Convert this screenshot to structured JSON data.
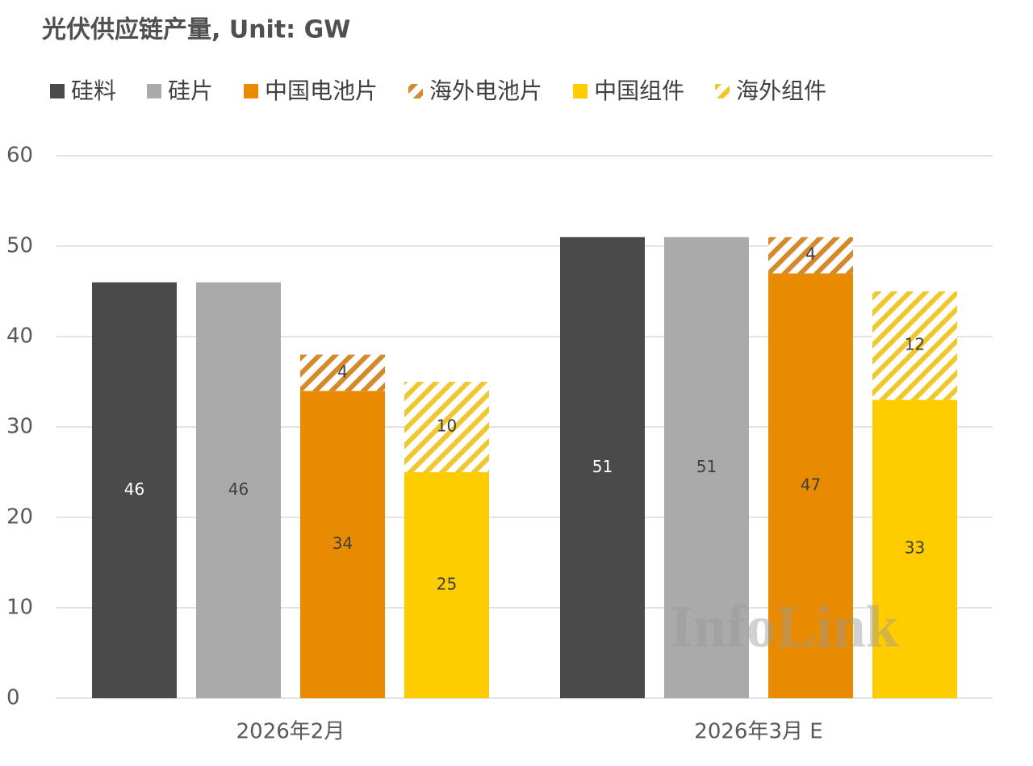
{
  "chart_data": {
    "type": "bar",
    "title": "光伏供应链产量, Unit: GW",
    "watermark": "InfoLink",
    "categories": [
      "2026年2月",
      "2026年3月 E"
    ],
    "series": [
      {
        "name": "硅料",
        "color": "#4a4a4a",
        "label_color": "#ffffff",
        "values": [
          46,
          51
        ]
      },
      {
        "name": "硅片",
        "color": "#aaaaaa",
        "label_color": "#404040",
        "values": [
          46,
          51
        ]
      },
      {
        "name": "中国电池片",
        "color": "#e88b00",
        "label_color": "#404040",
        "values": [
          34,
          47
        ]
      },
      {
        "name": "海外电池片",
        "color": "#d4892c",
        "label_color": "#404040",
        "pattern": "hatch",
        "values": [
          4,
          4
        ]
      },
      {
        "name": "中国组件",
        "color": "#ffcc00",
        "label_color": "#404040",
        "values": [
          25,
          33
        ]
      },
      {
        "name": "海外组件",
        "color": "#f2c72e",
        "label_color": "#404040",
        "pattern": "hatch",
        "values": [
          10,
          12
        ]
      }
    ],
    "ylim": [
      0,
      60
    ],
    "yticks": [
      0,
      10,
      20,
      30,
      40,
      50,
      60
    ],
    "grid": true
  }
}
